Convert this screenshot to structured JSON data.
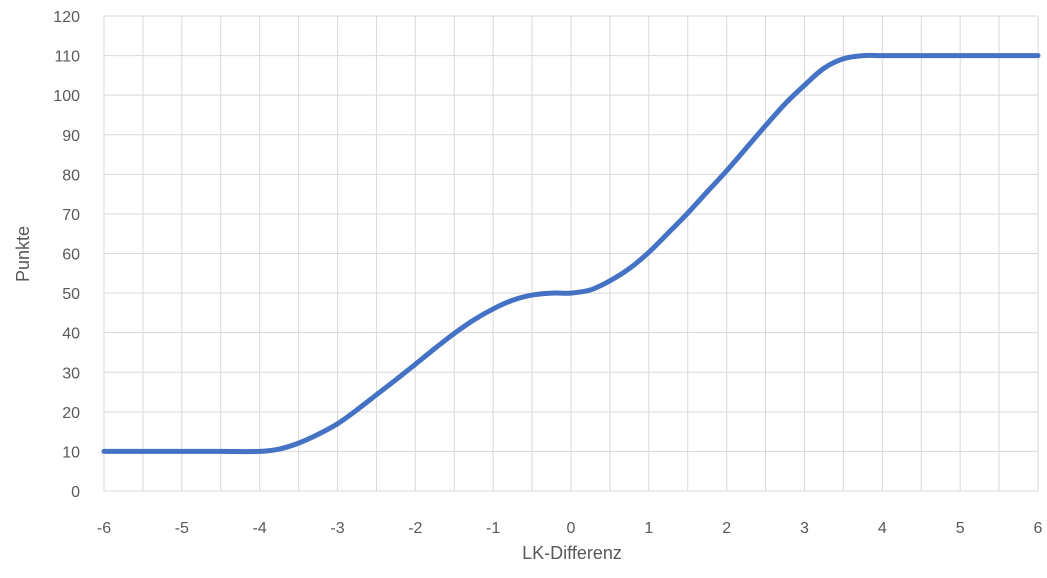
{
  "chart_data": {
    "type": "line",
    "title": "",
    "xlabel": "LK-Differenz",
    "ylabel": "Punkte",
    "xlim": [
      -6,
      6
    ],
    "ylim": [
      0,
      120
    ],
    "grid": true,
    "legend": "none",
    "x_ticks": [
      "-6",
      "-5",
      "-4",
      "-3",
      "-2",
      "-1",
      "0",
      "1",
      "2",
      "3",
      "4",
      "5",
      "6"
    ],
    "y_ticks": [
      "0",
      "10",
      "20",
      "30",
      "40",
      "50",
      "60",
      "70",
      "80",
      "90",
      "100",
      "110",
      "120"
    ],
    "line_color": "#4472c4",
    "series": [
      {
        "x": [
          -6,
          -5.5,
          -5,
          -4.5,
          -4,
          -3.75,
          -3.5,
          -3.25,
          -3,
          -2.75,
          -2.5,
          -2.25,
          -2,
          -1.75,
          -1.5,
          -1.25,
          -1,
          -0.75,
          -0.5,
          -0.25,
          0,
          0.25,
          0.5,
          0.75,
          1,
          1.25,
          1.5,
          1.75,
          2,
          2.25,
          2.5,
          2.75,
          3,
          3.25,
          3.5,
          3.75,
          4,
          4.5,
          5,
          5.5,
          6
        ],
        "values": [
          10,
          10,
          10,
          10,
          10,
          10.6,
          12.1,
          14.3,
          17,
          20.5,
          24.3,
          28.1,
          32,
          36,
          39.8,
          43.2,
          46,
          48.2,
          49.5,
          50,
          50,
          50.8,
          53.1,
          56.2,
          60.3,
          65.2,
          70.2,
          75.6,
          80.9,
          86.6,
          92.3,
          97.8,
          102.5,
          106.8,
          109.2,
          110,
          110,
          110,
          110,
          110,
          110
        ]
      }
    ]
  }
}
